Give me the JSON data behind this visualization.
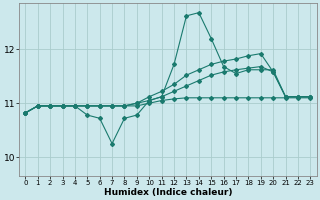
{
  "xlabel": "Humidex (Indice chaleur)",
  "background_color": "#cce8ec",
  "grid_color": "#aacccc",
  "line_color": "#1a7a6e",
  "xlim": [
    -0.5,
    23.5
  ],
  "ylim": [
    9.65,
    12.85
  ],
  "yticks": [
    10,
    11,
    12
  ],
  "xticks": [
    0,
    1,
    2,
    3,
    4,
    5,
    6,
    7,
    8,
    9,
    10,
    11,
    12,
    13,
    14,
    15,
    16,
    17,
    18,
    19,
    20,
    21,
    22,
    23
  ],
  "series": [
    [
      10.82,
      10.95,
      10.95,
      10.95,
      10.95,
      10.78,
      10.72,
      10.25,
      10.72,
      10.78,
      11.05,
      11.12,
      11.72,
      12.62,
      12.68,
      12.2,
      11.68,
      11.55,
      11.62,
      11.62,
      11.62,
      11.12,
      11.12,
      11.12
    ],
    [
      10.82,
      10.95,
      10.95,
      10.95,
      10.95,
      10.95,
      10.95,
      10.95,
      10.95,
      11.0,
      11.12,
      11.22,
      11.35,
      11.52,
      11.62,
      11.72,
      11.78,
      11.82,
      11.88,
      11.92,
      11.58,
      11.12,
      11.12,
      11.12
    ],
    [
      10.82,
      10.95,
      10.95,
      10.95,
      10.95,
      10.95,
      10.95,
      10.95,
      10.95,
      11.0,
      11.05,
      11.12,
      11.22,
      11.32,
      11.42,
      11.52,
      11.58,
      11.62,
      11.65,
      11.68,
      11.58,
      11.12,
      11.12,
      11.12
    ],
    [
      10.82,
      10.95,
      10.95,
      10.95,
      10.95,
      10.95,
      10.95,
      10.95,
      10.95,
      10.95,
      11.0,
      11.05,
      11.08,
      11.1,
      11.1,
      11.1,
      11.1,
      11.1,
      11.1,
      11.1,
      11.1,
      11.1,
      11.1,
      11.1
    ]
  ]
}
